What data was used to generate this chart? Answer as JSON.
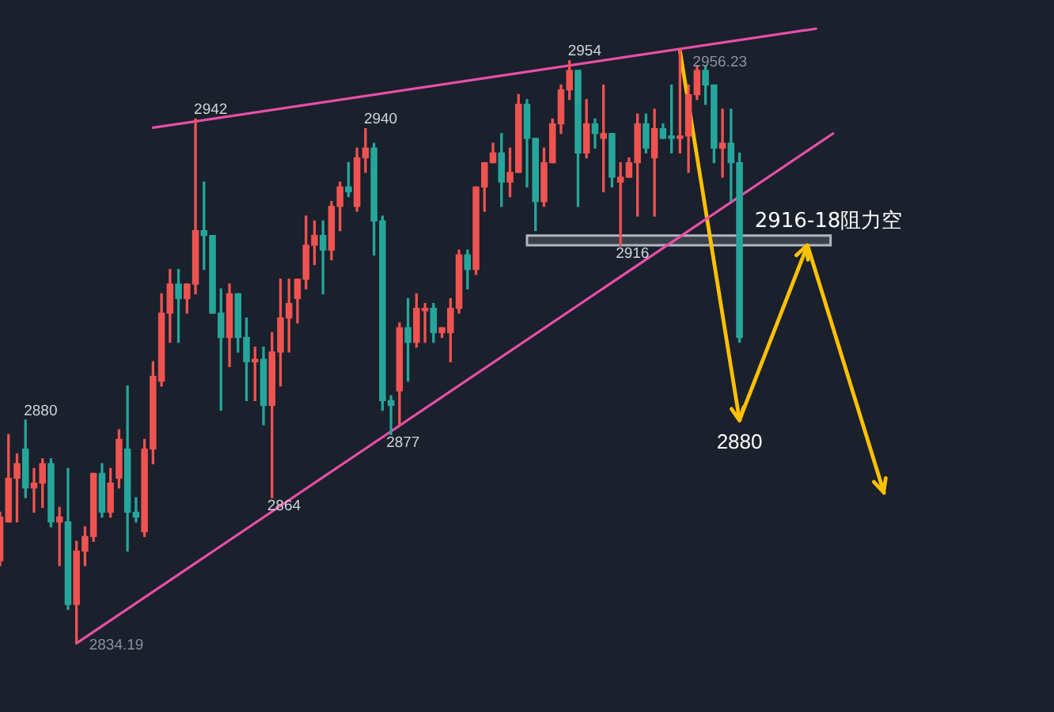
{
  "chart_data": {
    "type": "candlestick",
    "categories": [
      null,
      null,
      null,
      null,
      null,
      null,
      null,
      null,
      null,
      null,
      null,
      null,
      null,
      null,
      null,
      null,
      null,
      null,
      null,
      null,
      null,
      null,
      null,
      null,
      null,
      null,
      null,
      null,
      null,
      null,
      null,
      null,
      null,
      null,
      null,
      null,
      null,
      null,
      null,
      null,
      null,
      null,
      null,
      null,
      null,
      null,
      null,
      null,
      null,
      null,
      null,
      null,
      null,
      null,
      null,
      null,
      null,
      null,
      null,
      null,
      null,
      null,
      null,
      null,
      null,
      null,
      null,
      null,
      null,
      null,
      null,
      null,
      null,
      null,
      null,
      null,
      null,
      null,
      null,
      null,
      null,
      null,
      null,
      null,
      null,
      null,
      null,
      null,
      null,
      null,
      null,
      null,
      null,
      null,
      null,
      null,
      null,
      null,
      null,
      null,
      null,
      null,
      null,
      null,
      null,
      null,
      null,
      null,
      null,
      null,
      null,
      null,
      null,
      null,
      null,
      null,
      null,
      null,
      null,
      null,
      null,
      null,
      null,
      null,
      null
    ],
    "ohlc": [
      [
        2851,
        2861,
        2850,
        2860
      ],
      [
        2859,
        2877,
        2859,
        2868
      ],
      [
        2868,
        2873,
        2859,
        2871
      ],
      [
        2874,
        2880,
        2864,
        2866
      ],
      [
        2866,
        2870,
        2861,
        2867
      ],
      [
        2867,
        2872,
        2862,
        2871
      ],
      [
        2871,
        2872,
        2858,
        2859
      ],
      [
        2859,
        2862,
        2850,
        2860
      ],
      [
        2859,
        2870,
        2841,
        2842
      ],
      [
        2842,
        2855,
        2834.19,
        2853
      ],
      [
        2853,
        2858,
        2850,
        2856
      ],
      [
        2856,
        2869,
        2855,
        2869
      ],
      [
        2869,
        2871,
        2860,
        2861
      ],
      [
        2861,
        2870,
        2860,
        2867
      ],
      [
        2868,
        2878,
        2866,
        2876
      ],
      [
        2874,
        2887,
        2853,
        2861
      ],
      [
        2861,
        2864,
        2859,
        2860
      ],
      [
        2857,
        2876,
        2856,
        2874
      ],
      [
        2874,
        2892,
        2871,
        2889
      ],
      [
        2888,
        2906,
        2887,
        2902
      ],
      [
        2902,
        2911,
        2896,
        2908
      ],
      [
        2908,
        2911,
        2896,
        2905
      ],
      [
        2905,
        2908,
        2902,
        2908
      ],
      [
        2908,
        2942,
        2906,
        2919
      ],
      [
        2919,
        2929,
        2911,
        2918
      ],
      [
        2918,
        2918,
        2902,
        2902
      ],
      [
        2902,
        2907,
        2882,
        2897
      ],
      [
        2897,
        2908,
        2891,
        2906
      ],
      [
        2906,
        2906,
        2894,
        2897
      ],
      [
        2897,
        2901,
        2884,
        2892
      ],
      [
        2892,
        2895,
        2884,
        2892.5
      ],
      [
        2892.5,
        2895,
        2879,
        2883
      ],
      [
        2883,
        2898,
        2864,
        2894
      ],
      [
        2894,
        2909,
        2887,
        2901
      ],
      [
        2901,
        2909,
        2894,
        2904
      ],
      [
        2905,
        2909,
        2900,
        2909
      ],
      [
        2909,
        2922,
        2907,
        2916
      ],
      [
        2916,
        2921,
        2912,
        2918
      ],
      [
        2918,
        2921,
        2906,
        2915
      ],
      [
        2915,
        2925,
        2913,
        2924
      ],
      [
        2924,
        2929,
        2919,
        2928
      ],
      [
        2928,
        2933,
        2926,
        2927
      ],
      [
        2924,
        2936,
        2923,
        2934
      ],
      [
        2934,
        2940,
        2931,
        2936
      ],
      [
        2936,
        2937,
        2914,
        2921
      ],
      [
        2921,
        2922,
        2882,
        2884
      ],
      [
        2884,
        2885,
        2877,
        2883
      ],
      [
        2886,
        2900,
        2879,
        2899
      ],
      [
        2899,
        2905,
        2888,
        2896
      ],
      [
        2896,
        2906,
        2895,
        2903
      ],
      [
        2902.5,
        2904,
        2896,
        2903
      ],
      [
        2903,
        2904,
        2896,
        2898
      ],
      [
        2898,
        2899,
        2897,
        2899
      ],
      [
        2898,
        2905,
        2892,
        2903
      ],
      [
        2903,
        2915,
        2902,
        2914
      ],
      [
        2914,
        2915,
        2907,
        2911
      ],
      [
        2911,
        2928,
        2910,
        2928
      ],
      [
        2928,
        2933,
        2923,
        2933
      ],
      [
        2933,
        2937,
        2933,
        2935
      ],
      [
        2935,
        2939,
        2924,
        2929
      ],
      [
        2929,
        2936,
        2926,
        2931
      ],
      [
        2931,
        2947,
        2931,
        2945
      ],
      [
        2945,
        2946,
        2928,
        2938
      ],
      [
        2938,
        2938,
        2919,
        2925
      ],
      [
        2925,
        2936,
        2924,
        2933
      ],
      [
        2933,
        2942,
        2933,
        2941
      ],
      [
        2941,
        2949,
        2939,
        2948
      ],
      [
        2948,
        2954,
        2946,
        2952
      ],
      [
        2952,
        2952,
        2924,
        2935
      ],
      [
        2935,
        2946,
        2934,
        2941
      ],
      [
        2941,
        2942,
        2936,
        2939
      ],
      [
        2938,
        2949,
        2927,
        2939
      ],
      [
        2939,
        2939,
        2928,
        2930
      ],
      [
        2929,
        2933,
        2916,
        2930
      ],
      [
        2930,
        2934,
        2930,
        2933
      ],
      [
        2933,
        2943,
        2922,
        2941
      ],
      [
        2941,
        2943,
        2935,
        2936
      ],
      [
        2934,
        2944,
        2922,
        2940
      ],
      [
        2940,
        2941,
        2938,
        2938
      ],
      [
        2938.5,
        2949,
        2935,
        2938
      ],
      [
        2938,
        2956.23,
        2935,
        2938.5
      ],
      [
        2938.5,
        2949,
        2931,
        2947
      ],
      [
        2947,
        2953,
        2946,
        2952
      ],
      [
        2952,
        2953,
        2945,
        2949
      ],
      [
        2949,
        2949,
        2933,
        2936
      ],
      [
        2936,
        2944,
        2930,
        2937
      ],
      [
        2937,
        2944,
        2925,
        2933
      ],
      [
        2933,
        2935,
        2896,
        2897
      ],
      null,
      null,
      null,
      null,
      null,
      null,
      null,
      null,
      null,
      null,
      null,
      null,
      null,
      null,
      null,
      null,
      null,
      null,
      null,
      null,
      null,
      null,
      null,
      null,
      null,
      null,
      null,
      null,
      null,
      null,
      null,
      null,
      null,
      null,
      null,
      null,
      null
    ],
    "colors": [
      "#ef5350",
      "#ef5350",
      "#ef5350",
      "#26a69a",
      "#ef5350",
      "#ef5350",
      "#26a69a",
      "#ef5350",
      "#26a69a",
      "#ef5350",
      "#ef5350",
      "#ef5350",
      "#26a69a",
      "#ef5350",
      "#ef5350",
      "#26a69a",
      "#26a69a",
      "#ef5350",
      "#ef5350",
      "#ef5350",
      "#ef5350",
      "#26a69a",
      "#ef5350",
      "#ef5350",
      "#26a69a",
      "#26a69a",
      "#26a69a",
      "#ef5350",
      "#26a69a",
      "#26a69a",
      "#ef5350",
      "#26a69a",
      "#ef5350",
      "#ef5350",
      "#ef5350",
      "#ef5350",
      "#ef5350",
      "#ef5350",
      "#26a69a",
      "#ef5350",
      "#ef5350",
      "#26a69a",
      "#ef5350",
      "#ef5350",
      "#26a69a",
      "#26a69a",
      "#26a69a",
      "#ef5350",
      "#26a69a",
      "#ef5350",
      "#ef5350",
      "#26a69a",
      "#ef5350",
      "#ef5350",
      "#ef5350",
      "#26a69a",
      "#ef5350",
      "#ef5350",
      "#ef5350",
      "#26a69a",
      "#ef5350",
      "#ef5350",
      "#26a69a",
      "#26a69a",
      "#ef5350",
      "#ef5350",
      "#ef5350",
      "#ef5350",
      "#26a69a",
      "#ef5350",
      "#26a69a",
      "#ef5350",
      "#26a69a",
      "#ef5350",
      "#ef5350",
      "#ef5350",
      "#26a69a",
      "#ef5350",
      "#26a69a",
      "#26a69a",
      "#ef5350",
      "#ef5350",
      "#ef5350",
      "#26a69a",
      "#26a69a",
      "#ef5350",
      "#26a69a",
      "#26a69a",
      null,
      null,
      null,
      null,
      null,
      null,
      null,
      null,
      null,
      null,
      null,
      null,
      null,
      null,
      null,
      null,
      null,
      null,
      null,
      null,
      null,
      null,
      null,
      null,
      null,
      null,
      null,
      null,
      null,
      null,
      null,
      null,
      null,
      null,
      null,
      null,
      null
    ],
    "value_labels": [
      null,
      null,
      null,
      "2880",
      null,
      null,
      null,
      null,
      null,
      "2834.19",
      null,
      null,
      null,
      null,
      null,
      null,
      null,
      null,
      null,
      null,
      null,
      null,
      null,
      "2942",
      null,
      null,
      null,
      null,
      null,
      null,
      null,
      null,
      "2864",
      null,
      null,
      null,
      null,
      null,
      null,
      null,
      null,
      null,
      null,
      "2940",
      null,
      null,
      "2877",
      null,
      null,
      null,
      null,
      null,
      null,
      null,
      null,
      null,
      null,
      null,
      null,
      null,
      null,
      null,
      null,
      null,
      null,
      null,
      null,
      "2954",
      null,
      null,
      null,
      null,
      null,
      "2916",
      null,
      null,
      null,
      null,
      null,
      null,
      "2956.23",
      null,
      null,
      null,
      null,
      null,
      null,
      null,
      null,
      null,
      null,
      null,
      null,
      null,
      null,
      null,
      null,
      null,
      null,
      null,
      null,
      null,
      null,
      null,
      null,
      null,
      null,
      null,
      null,
      null,
      null,
      null,
      null,
      null,
      null,
      null,
      null,
      null,
      null,
      null,
      null,
      null,
      null,
      null,
      null
    ],
    "series": [
      {
        "type": "line",
        "color": "#e84fa8",
        "values": [
          null,
          null,
          null,
          null,
          null,
          null,
          null,
          null,
          null,
          null,
          null,
          null,
          null,
          null,
          null,
          null,
          null,
          null,
          2940.2,
          null,
          null,
          null,
          null,
          null,
          null,
          null,
          null,
          null,
          null,
          null,
          null,
          null,
          null,
          null,
          null,
          null,
          null,
          null,
          null,
          null,
          null,
          null,
          null,
          null,
          null,
          null,
          null,
          null,
          null,
          null,
          null,
          null,
          null,
          null,
          null,
          null,
          null,
          null,
          null,
          null,
          null,
          null,
          null,
          null,
          null,
          null,
          null,
          null,
          null,
          null,
          null,
          null,
          null,
          null,
          null,
          null,
          null,
          null,
          null,
          null,
          null,
          null,
          null,
          null,
          null,
          null,
          null,
          null,
          null,
          null,
          null,
          null,
          null,
          null,
          null,
          null,
          2960.6,
          null,
          null,
          null,
          null,
          null,
          null,
          null,
          null,
          null,
          null,
          null,
          null,
          null,
          null,
          null,
          null,
          null,
          null,
          null,
          null,
          null,
          null,
          null,
          null,
          null,
          null,
          null,
          null
        ]
      },
      {
        "type": "line",
        "color": "#e84fa8",
        "values": [
          null,
          null,
          null,
          null,
          null,
          null,
          null,
          null,
          null,
          2834,
          null,
          null,
          null,
          null,
          null,
          null,
          null,
          null,
          null,
          null,
          null,
          null,
          null,
          null,
          null,
          null,
          null,
          null,
          null,
          null,
          null,
          null,
          null,
          null,
          null,
          null,
          null,
          null,
          null,
          null,
          null,
          null,
          null,
          null,
          null,
          null,
          null,
          null,
          null,
          null,
          null,
          null,
          null,
          null,
          null,
          null,
          null,
          null,
          null,
          null,
          null,
          null,
          null,
          null,
          null,
          null,
          null,
          null,
          null,
          null,
          null,
          null,
          null,
          null,
          null,
          null,
          null,
          null,
          null,
          null,
          null,
          null,
          null,
          null,
          null,
          null,
          null,
          null,
          null,
          null,
          null,
          null,
          null,
          null,
          null,
          null,
          null,
          null,
          2939,
          null,
          null,
          null,
          null,
          null,
          null,
          null,
          null,
          null,
          null,
          null,
          null,
          null,
          null,
          null,
          null,
          null,
          null,
          null,
          null,
          null,
          null,
          null,
          null,
          null,
          null
        ]
      },
      {
        "type": "line",
        "color": "#ffc000",
        "values": [
          null,
          null,
          null,
          null,
          null,
          null,
          null,
          null,
          null,
          null,
          null,
          null,
          null,
          null,
          null,
          null,
          null,
          null,
          null,
          null,
          null,
          null,
          null,
          null,
          null,
          null,
          null,
          null,
          null,
          null,
          null,
          null,
          null,
          null,
          null,
          null,
          null,
          null,
          null,
          null,
          null,
          null,
          null,
          null,
          null,
          null,
          null,
          null,
          null,
          null,
          null,
          null,
          null,
          null,
          null,
          null,
          null,
          null,
          null,
          null,
          null,
          null,
          null,
          null,
          null,
          null,
          null,
          null,
          null,
          null,
          null,
          null,
          null,
          null,
          null,
          null,
          null,
          null,
          null,
          null,
          2956,
          null,
          null,
          null,
          null,
          null,
          null,
          2880,
          null,
          null,
          null,
          null,
          null,
          null,
          null,
          2916,
          null,
          null,
          null,
          null,
          null,
          null,
          null,
          null,
          2865,
          null,
          null,
          null,
          null,
          null,
          null,
          null,
          null,
          null,
          null,
          null,
          null,
          null,
          null,
          null,
          null,
          null,
          null,
          null,
          null
        ],
        "value_labels": [
          null,
          null,
          null,
          null,
          null,
          null,
          null,
          null,
          null,
          null,
          null,
          null,
          null,
          null,
          null,
          null,
          null,
          null,
          null,
          null,
          null,
          null,
          null,
          null,
          null,
          null,
          null,
          null,
          null,
          null,
          null,
          null,
          null,
          null,
          null,
          null,
          null,
          null,
          null,
          null,
          null,
          null,
          null,
          null,
          null,
          null,
          null,
          null,
          null,
          null,
          null,
          null,
          null,
          null,
          null,
          null,
          null,
          null,
          null,
          null,
          null,
          null,
          null,
          null,
          null,
          null,
          null,
          null,
          null,
          null,
          null,
          null,
          null,
          null,
          null,
          null,
          null,
          null,
          null,
          null,
          null,
          null,
          null,
          null,
          null,
          null,
          null,
          "2880",
          null,
          null,
          null,
          null,
          null,
          null,
          null,
          null,
          null,
          null,
          null,
          null,
          null,
          null,
          null,
          null,
          null,
          null,
          null,
          null,
          null,
          null,
          null,
          null,
          null,
          null,
          null,
          null,
          null,
          null,
          null,
          null,
          null,
          null,
          null,
          null,
          null
        ]
      }
    ],
    "bands": [
      {
        "axis": "y",
        "from": 2916,
        "to": 2918,
        "label": "2916-18阻力空",
        "color": "#b2b5be"
      }
    ],
    "tick_labels": false,
    "marker": "none"
  }
}
